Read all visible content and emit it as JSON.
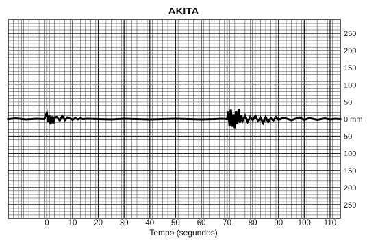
{
  "chart_data": {
    "type": "line",
    "title": "AKITA",
    "xlabel": "Tempo (segundos)",
    "ylabel": "",
    "x_ticks": [
      "0",
      "10",
      "20",
      "30",
      "40",
      "50",
      "60",
      "70",
      "80",
      "90",
      "100",
      "110"
    ],
    "xlim": [
      -15,
      114
    ],
    "y_tick_labels": [
      "250",
      "200",
      "150",
      "100",
      "50",
      "0 mm",
      "50",
      "100",
      "150",
      "200",
      "250"
    ],
    "y_tick_values": [
      250,
      200,
      150,
      100,
      50,
      0,
      -50,
      -100,
      -150,
      -200,
      -250
    ],
    "ylim": [
      -290,
      290
    ],
    "grid": true,
    "series": [
      {
        "x": [
          -15,
          -12,
          -8,
          -4,
          -1,
          0,
          0.5,
          1,
          1.5,
          2,
          2.5,
          3,
          4,
          5,
          6,
          7,
          8,
          9,
          10,
          11,
          12,
          13,
          14,
          16,
          20,
          25,
          30,
          35,
          40,
          45,
          50,
          55,
          60,
          65,
          68,
          70,
          70.5,
          71,
          71.5,
          72,
          72.5,
          73,
          73.5,
          74,
          74.5,
          75,
          75.5,
          76,
          77,
          78,
          79,
          80,
          81,
          82,
          83,
          84,
          85,
          86,
          87,
          88,
          89,
          90,
          92,
          95,
          98,
          100,
          102,
          105,
          108,
          110,
          112,
          114
        ],
        "y": [
          0,
          2,
          -1,
          1,
          0,
          18,
          -8,
          10,
          -15,
          8,
          -12,
          5,
          6,
          -4,
          9,
          -3,
          5,
          2,
          -2,
          3,
          -1,
          2,
          0,
          1,
          0,
          -1,
          1,
          0,
          -1,
          0,
          1,
          0,
          -1,
          0,
          1,
          0,
          22,
          -20,
          28,
          -22,
          14,
          -28,
          24,
          -15,
          30,
          -10,
          12,
          -6,
          10,
          -8,
          6,
          -3,
          9,
          -5,
          4,
          -11,
          6,
          -8,
          3,
          -4,
          6,
          -2,
          4,
          -3,
          5,
          -2,
          3,
          -2,
          2,
          -1,
          1,
          0
        ]
      }
    ],
    "colors": {
      "line": "#000000",
      "grid_major": "#222222",
      "grid_minor": "#555555",
      "background": "#ffffff"
    }
  }
}
